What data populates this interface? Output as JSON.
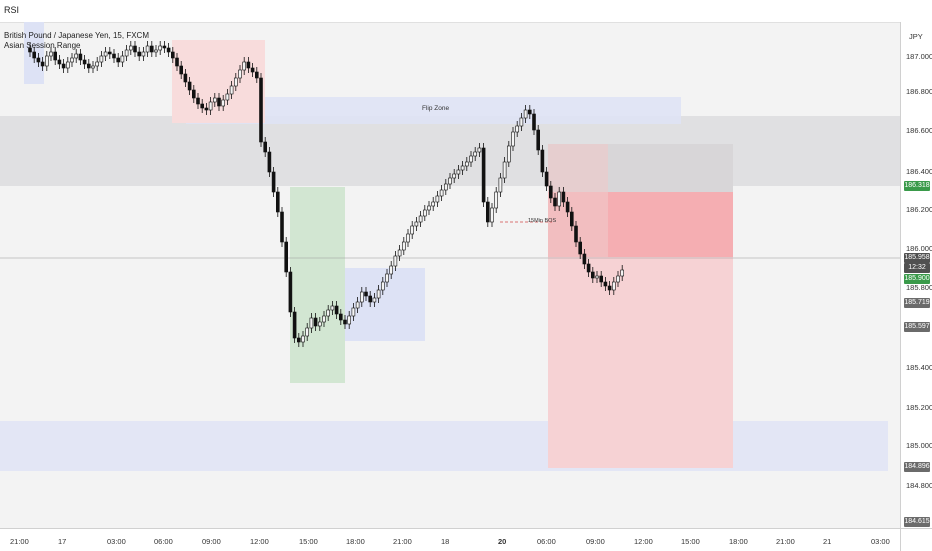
{
  "topbar": {
    "indicator": "RSI"
  },
  "legend": {
    "symbol_line": "British Pound / Japanese Yen, 15, FXCM",
    "line2": "Asian Session Range"
  },
  "price_axis": {
    "currency": "JPY",
    "ticks": [
      "187.000",
      "186.800",
      "186.600",
      "186.400",
      "186.200",
      "186.000",
      "185.800",
      "185.400",
      "185.200",
      "185.000",
      "184.800"
    ],
    "badges": {
      "level_a": "186.318",
      "current": "185.958",
      "countdown": "12:32",
      "level_b": "185.900",
      "level_c": "185.719",
      "level_d": "185.597",
      "level_e": "184.896",
      "level_f": "184.615"
    }
  },
  "time_axis": {
    "ticks": [
      "21:00",
      "17",
      "03:00",
      "06:00",
      "09:00",
      "12:00",
      "15:00",
      "18:00",
      "21:00",
      "18",
      "20",
      "06:00",
      "09:00",
      "12:00",
      "15:00",
      "18:00",
      "21:00",
      "21",
      "03:00"
    ]
  },
  "annotations": {
    "flip_zone": "Flip Zone",
    "bos": "15Min BOS"
  },
  "colors": {
    "up": "#f2f2f2",
    "down": "#111111",
    "bg": "#f3f3f3",
    "green_badge": "#3a9a4a",
    "gray_badge": "#6b6b6b",
    "dark_badge": "#505050"
  },
  "chart_data": {
    "type": "candlestick",
    "symbol": "British Pound / Japanese Yen, 15, FXCM",
    "y_range": [
      184.615,
      187.1
    ],
    "close_series": [
      187.05,
      187.02,
      187.0,
      186.98,
      187.03,
      187.05,
      187.01,
      186.99,
      186.97,
      187.0,
      187.02,
      187.04,
      187.01,
      186.99,
      186.97,
      186.98,
      187.0,
      187.03,
      187.05,
      187.04,
      187.02,
      187.0,
      187.03,
      187.06,
      187.08,
      187.05,
      187.03,
      187.05,
      187.08,
      187.05,
      187.06,
      187.08,
      187.07,
      187.05,
      187.02,
      186.98,
      186.94,
      186.9,
      186.86,
      186.82,
      186.79,
      186.77,
      186.76,
      186.8,
      186.82,
      186.78,
      186.81,
      186.84,
      186.88,
      186.92,
      186.96,
      187.0,
      186.97,
      186.95,
      186.92,
      186.6,
      186.55,
      186.45,
      186.35,
      186.25,
      186.1,
      185.95,
      185.75,
      185.62,
      185.6,
      185.63,
      185.67,
      185.72,
      185.68,
      185.7,
      185.73,
      185.76,
      185.78,
      185.74,
      185.71,
      185.69,
      185.73,
      185.77,
      185.8,
      185.85,
      185.83,
      185.8,
      185.82,
      185.86,
      185.9,
      185.94,
      185.98,
      186.03,
      186.06,
      186.1,
      186.14,
      186.18,
      186.2,
      186.23,
      186.26,
      186.28,
      186.3,
      186.33,
      186.36,
      186.39,
      186.42,
      186.44,
      186.46,
      186.48,
      186.5,
      186.53,
      186.55,
      186.57,
      186.3,
      186.2,
      186.27,
      186.35,
      186.42,
      186.5,
      186.58,
      186.65,
      186.68,
      186.72,
      186.76,
      186.74,
      186.66,
      186.56,
      186.45,
      186.38,
      186.32,
      186.28,
      186.35,
      186.3,
      186.25,
      186.18,
      186.1,
      186.04,
      185.99,
      185.95,
      185.92,
      185.93,
      185.9,
      185.88,
      185.86,
      185.9,
      185.93,
      185.96
    ]
  }
}
